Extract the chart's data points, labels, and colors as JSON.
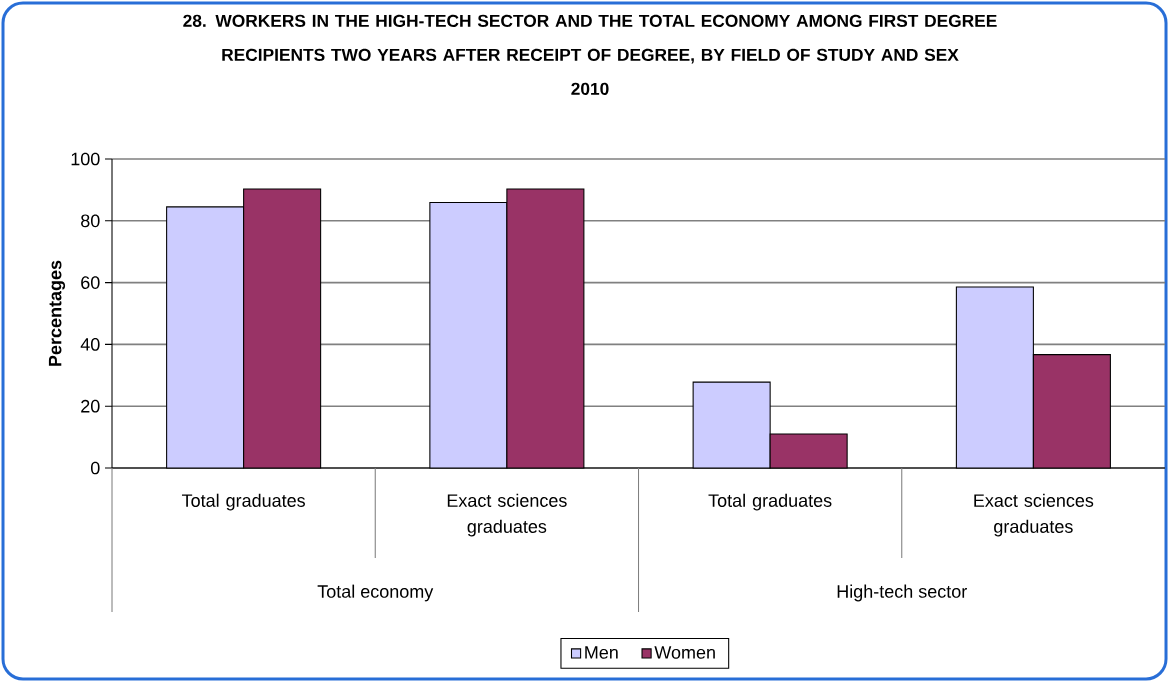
{
  "chart_data": {
    "type": "bar",
    "title": "28. WORKERS IN THE HIGH-TECH SECTOR AND THE TOTAL ECONOMY AMONG FIRST DEGREE RECIPIENTS TWO YEARS AFTER RECEIPT OF DEGREE, BY FIELD OF STUDY AND SEX",
    "subtitle": "2010",
    "ylabel": "Percentages",
    "categories": [
      "Total graduates",
      "Exact sciences graduates",
      "Total graduates",
      "Exact sciences graduates"
    ],
    "annotations": [
      "Total economy",
      "High-tech sector"
    ],
    "series": [
      {
        "name": "Men",
        "color": "#ccccff",
        "values": [
          84.5,
          85.9,
          27.8,
          58.6
        ]
      },
      {
        "name": "Women",
        "color": "#993366",
        "values": [
          90.3,
          90.3,
          11.0,
          36.7
        ]
      }
    ],
    "ylim": [
      0,
      100
    ],
    "yticks": [
      0,
      20,
      40,
      60,
      80,
      100
    ],
    "grid": "y",
    "legend": "bottom"
  }
}
